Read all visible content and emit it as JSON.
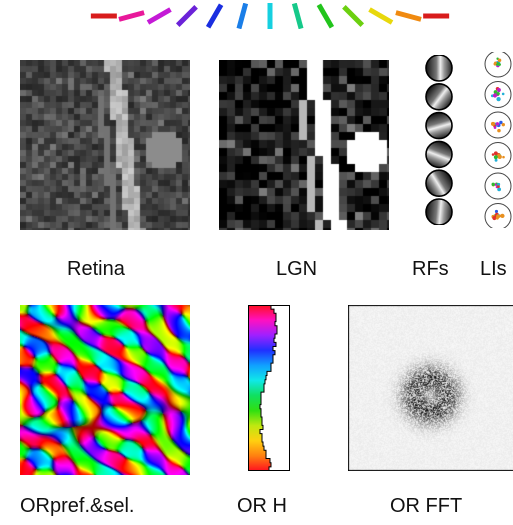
{
  "orientation_legend": {
    "colors": [
      "#d81c1c",
      "#e8189a",
      "#c41ad6",
      "#6b22d8",
      "#1a2ee0",
      "#1a7ee8",
      "#16d0e0",
      "#16c98a",
      "#22c41c",
      "#6cd010",
      "#e8d80c",
      "#f08a10",
      "#d81c1c"
    ]
  },
  "panels": {
    "retina": {
      "label": "Retina"
    },
    "lgn": {
      "label": "LGN"
    },
    "rfs": {
      "label": "RFs",
      "count": 6
    },
    "lls": {
      "label": "LIs",
      "count": 6
    },
    "orpref": {
      "label": "ORpref.&sel."
    },
    "orh": {
      "label": "OR H"
    },
    "orfft": {
      "label": "OR FFT"
    }
  }
}
